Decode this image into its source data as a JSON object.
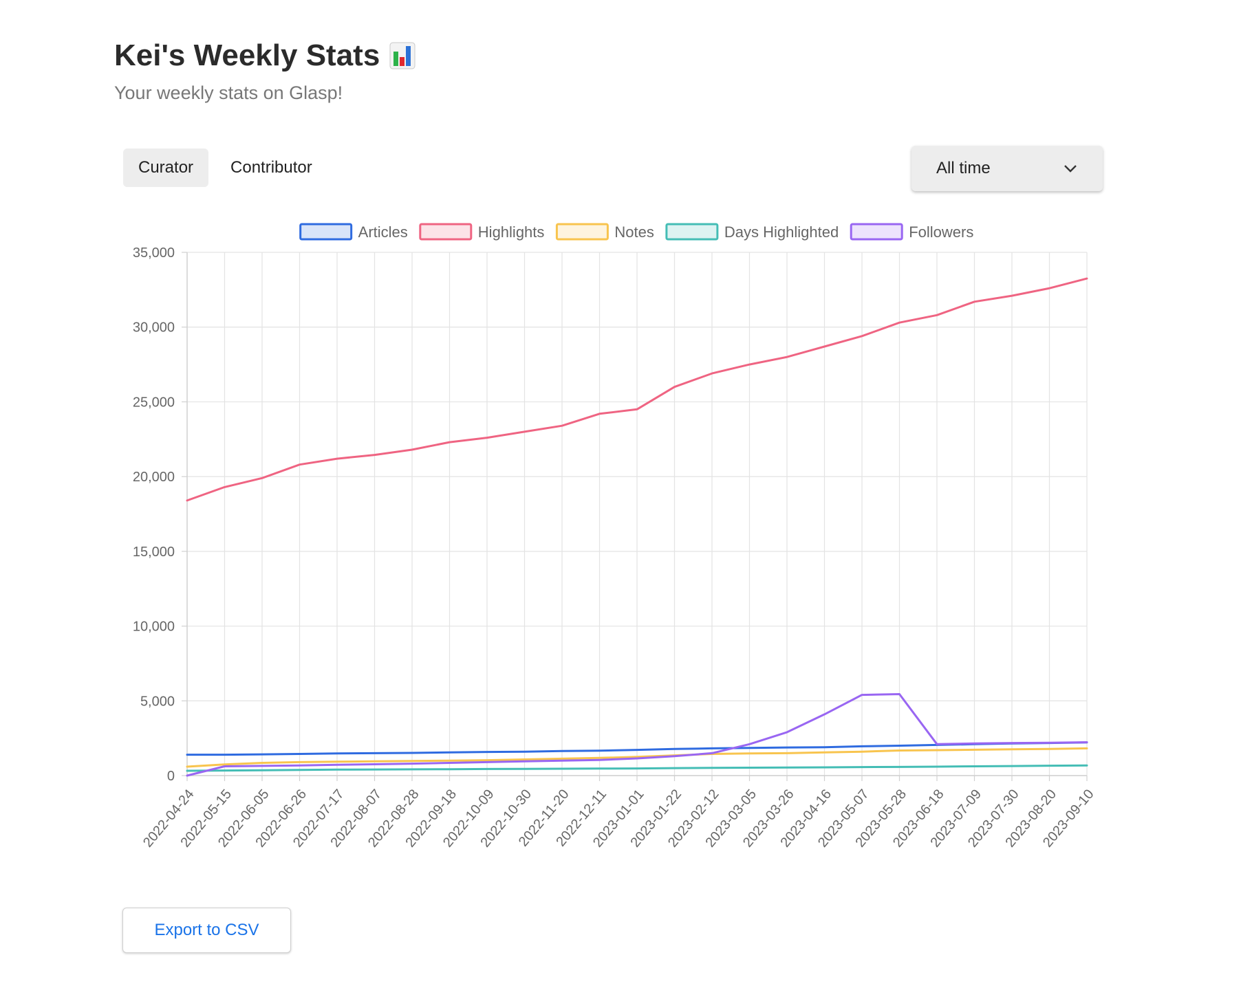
{
  "header": {
    "title": "Kei's Weekly Stats",
    "subtitle": "Your weekly stats on Glasp!",
    "title_icon": "bar-chart-emoji"
  },
  "tabs": [
    {
      "label": "Curator",
      "active": true
    },
    {
      "label": "Contributor",
      "active": false
    }
  ],
  "range_select": {
    "value": "All time",
    "icon": "chevron-down-icon"
  },
  "export": {
    "label": "Export to CSV"
  },
  "chart_data": {
    "type": "line",
    "title": "",
    "xlabel": "",
    "ylabel": "",
    "ylim": [
      0,
      35000
    ],
    "yticks": [
      0,
      5000,
      10000,
      15000,
      20000,
      25000,
      30000,
      35000
    ],
    "ytick_labels": [
      "0",
      "5,000",
      "10,000",
      "15,000",
      "20,000",
      "25,000",
      "30,000",
      "35,000"
    ],
    "xtick_labels": [
      "2022-04-24",
      "2022-05-15",
      "2022-06-05",
      "2022-06-26",
      "2022-07-17",
      "2022-08-07",
      "2022-08-28",
      "2022-09-18",
      "2022-10-09",
      "2022-10-30",
      "2022-11-20",
      "2022-12-11",
      "2023-01-01",
      "2023-01-22",
      "2023-02-12",
      "2023-03-05",
      "2023-03-26",
      "2023-04-16",
      "2023-05-07",
      "2023-05-28",
      "2023-06-18",
      "2023-07-09",
      "2023-07-30",
      "2023-08-20",
      "2023-09-10"
    ],
    "grid": true,
    "legend": "top-center",
    "series": [
      {
        "name": "Articles",
        "color": "#2f6be0",
        "fill": "rgba(47,107,224,0.18)",
        "values": [
          1400,
          1400,
          1420,
          1450,
          1480,
          1500,
          1520,
          1550,
          1580,
          1600,
          1640,
          1670,
          1720,
          1780,
          1820,
          1850,
          1880,
          1900,
          1960,
          2000,
          2050,
          2100,
          2150,
          2180,
          2220
        ]
      },
      {
        "name": "Highlights",
        "color": "#ef6482",
        "fill": "rgba(239,100,130,0.18)",
        "values": [
          18400,
          19300,
          19900,
          20800,
          21200,
          21450,
          21800,
          22300,
          22600,
          23000,
          23400,
          24200,
          24500,
          26000,
          26900,
          27500,
          28000,
          28700,
          29400,
          30300,
          30800,
          31700,
          32100,
          32600,
          33250
        ]
      },
      {
        "name": "Notes",
        "color": "#f8c44e",
        "fill": "rgba(248,196,78,0.18)",
        "values": [
          600,
          750,
          850,
          900,
          930,
          950,
          980,
          1000,
          1030,
          1080,
          1130,
          1180,
          1250,
          1350,
          1450,
          1480,
          1500,
          1550,
          1600,
          1680,
          1700,
          1730,
          1760,
          1780,
          1820
        ]
      },
      {
        "name": "Days Highlighted",
        "color": "#44bdb5",
        "fill": "rgba(68,189,181,0.18)",
        "values": [
          320,
          340,
          360,
          380,
          400,
          410,
          420,
          430,
          440,
          450,
          460,
          470,
          480,
          500,
          520,
          530,
          540,
          550,
          570,
          580,
          600,
          620,
          640,
          660,
          680
        ]
      },
      {
        "name": "Followers",
        "color": "#9966f2",
        "fill": "rgba(153,102,242,0.18)",
        "values": [
          0,
          620,
          650,
          680,
          720,
          760,
          800,
          850,
          900,
          950,
          1000,
          1050,
          1150,
          1300,
          1500,
          2100,
          2900,
          4100,
          5400,
          5450,
          2100,
          2150,
          2180,
          2200,
          2230
        ]
      }
    ]
  }
}
